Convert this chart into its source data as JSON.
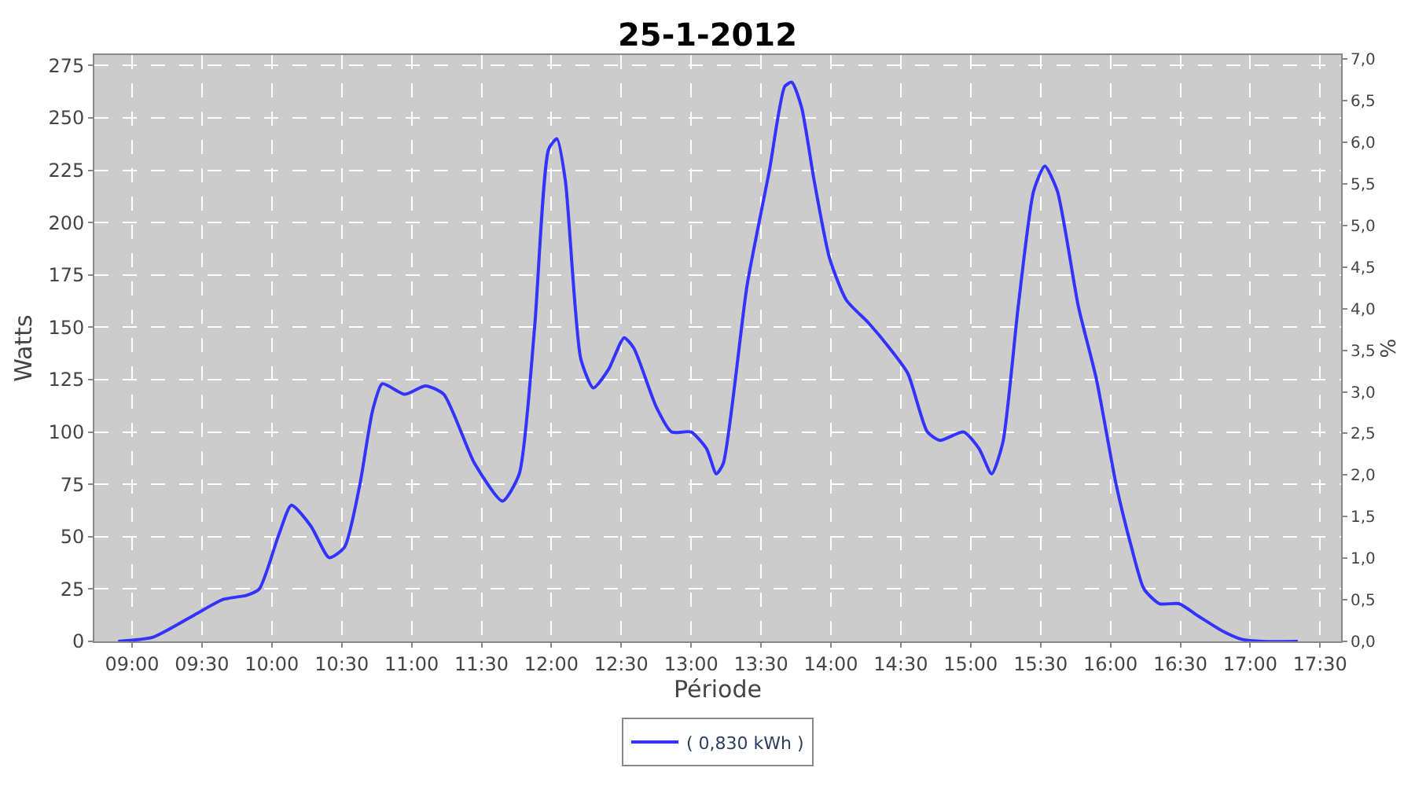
{
  "chart_data": {
    "type": "line",
    "title": "25-1-2012",
    "xlabel": "Période",
    "ylabel": "Watts",
    "y2label": "%",
    "x": [
      8.9,
      9.15,
      9.43,
      9.65,
      9.82,
      9.91,
      10.05,
      10.14,
      10.28,
      10.41,
      10.52,
      10.63,
      10.72,
      10.79,
      10.95,
      11.1,
      11.23,
      11.45,
      11.65,
      11.77,
      11.88,
      11.98,
      12.04,
      12.1,
      12.21,
      12.3,
      12.41,
      12.52,
      12.59,
      12.75,
      12.86,
      13.0,
      13.11,
      13.18,
      13.23,
      13.4,
      13.56,
      13.67,
      13.72,
      13.79,
      13.88,
      13.99,
      14.11,
      14.27,
      14.42,
      14.55,
      14.69,
      14.78,
      14.95,
      15.06,
      15.15,
      15.23,
      15.34,
      15.45,
      15.53,
      15.62,
      15.77,
      15.9,
      16.04,
      16.15,
      16.24,
      16.35,
      16.49,
      16.63,
      16.8,
      16.94,
      17.09,
      17.34
    ],
    "series": [
      {
        "name": "( 0,830 kWh )",
        "color": "#3333ff",
        "values": [
          0,
          2,
          12,
          20,
          22,
          25,
          51,
          65,
          55,
          40,
          45,
          75,
          110,
          123,
          118,
          122,
          118,
          85,
          67,
          80,
          150,
          235,
          240,
          220,
          135,
          121,
          130,
          145,
          140,
          112,
          100,
          100,
          92,
          80,
          85,
          170,
          225,
          265,
          267,
          255,
          220,
          183,
          163,
          152,
          140,
          128,
          100,
          96,
          100,
          92,
          80,
          95,
          160,
          215,
          227,
          215,
          160,
          125,
          75,
          45,
          25,
          18,
          18,
          12,
          5,
          1,
          0,
          0
        ]
      }
    ],
    "xlim": [
      8.73,
      17.65
    ],
    "xticks": [
      {
        "value": 9,
        "label": "09:00"
      },
      {
        "value": 9.5,
        "label": "09:30"
      },
      {
        "value": 10,
        "label": "10:00"
      },
      {
        "value": 10.5,
        "label": "10:30"
      },
      {
        "value": 11,
        "label": "11:00"
      },
      {
        "value": 11.5,
        "label": "11:30"
      },
      {
        "value": 12,
        "label": "12:00"
      },
      {
        "value": 12.5,
        "label": "12:30"
      },
      {
        "value": 13,
        "label": "13:00"
      },
      {
        "value": 13.5,
        "label": "13:30"
      },
      {
        "value": 14,
        "label": "14:00"
      },
      {
        "value": 14.5,
        "label": "14:30"
      },
      {
        "value": 15,
        "label": "15:00"
      },
      {
        "value": 15.5,
        "label": "15:30"
      },
      {
        "value": 16,
        "label": "16:00"
      },
      {
        "value": 16.5,
        "label": "16:30"
      },
      {
        "value": 17,
        "label": "17:00"
      },
      {
        "value": 17.5,
        "label": "17:30"
      }
    ],
    "ylim": [
      0,
      280
    ],
    "yticks": [
      0,
      25,
      50,
      75,
      100,
      125,
      150,
      175,
      200,
      225,
      250,
      275
    ],
    "y2lim": [
      0,
      7.05
    ],
    "y2ticks": [
      {
        "value": 0,
        "label": "0,0"
      },
      {
        "value": 0.5,
        "label": "0,5"
      },
      {
        "value": 1,
        "label": "1,0"
      },
      {
        "value": 1.5,
        "label": "1,5"
      },
      {
        "value": 2,
        "label": "2,0"
      },
      {
        "value": 2.5,
        "label": "2,5"
      },
      {
        "value": 3,
        "label": "3,0"
      },
      {
        "value": 3.5,
        "label": "3,5"
      },
      {
        "value": 4,
        "label": "4,0"
      },
      {
        "value": 4.5,
        "label": "4,5"
      },
      {
        "value": 5,
        "label": "5,0"
      },
      {
        "value": 5.5,
        "label": "5,5"
      },
      {
        "value": 6,
        "label": "6,0"
      },
      {
        "value": 6.5,
        "label": "6,5"
      },
      {
        "value": 7,
        "label": "7,0"
      }
    ],
    "grid": true,
    "legend": "bottom",
    "marker": "none",
    "line_style": "solid"
  }
}
